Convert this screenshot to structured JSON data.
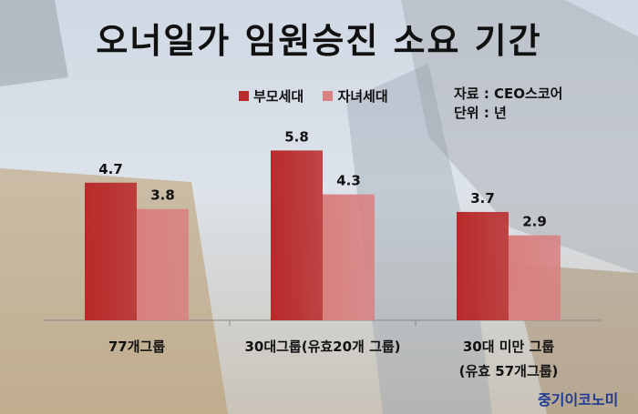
{
  "title": "오너일가 임원승진 소요 기간",
  "source": {
    "line1": "자료 : CEO스코어",
    "line2": "단위 : 년"
  },
  "brand": "중기이코노미",
  "colors": {
    "parent": "#b92a2a",
    "child": "#d98080"
  },
  "chart_data": {
    "type": "bar",
    "title": "오너일가 임원승진 소요 기간",
    "categories": [
      "77개그룹",
      "30대그룹(유효20개 그룹)",
      "30대 미만 그룹\n(유효 57개그룹)"
    ],
    "series": [
      {
        "name": "부모세대",
        "values": [
          4.7,
          5.8,
          3.7
        ]
      },
      {
        "name": "자녀세대",
        "values": [
          3.8,
          4.3,
          2.9
        ]
      }
    ],
    "data_labels": [
      [
        "4.7",
        "5.8",
        "3.7"
      ],
      [
        "3.8",
        "4.3",
        "2.9"
      ]
    ],
    "ylim": [
      0,
      6.9
    ],
    "grid": false,
    "legend": "top"
  }
}
